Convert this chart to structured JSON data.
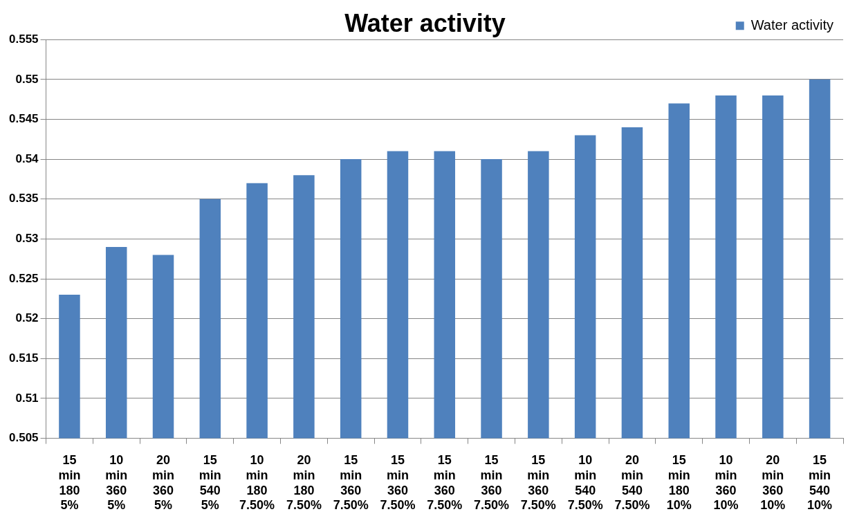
{
  "chart_data": {
    "type": "bar",
    "title": "Water activity",
    "categories": [
      "15\nmin\n180\n5%",
      "10\nmin\n360\n5%",
      "20\nmin\n360\n5%",
      "15\nmin\n540\n5%",
      "10\nmin\n180\n7.50%",
      "20\nmin\n180\n7.50%",
      "15\nmin\n360\n7.50%",
      "15\nmin\n360\n7.50%",
      "15\nmin\n360\n7.50%",
      "15\nmin\n360\n7.50%",
      "15\nmin\n360\n7.50%",
      "10\nmin\n540\n7.50%",
      "20\nmin\n540\n7.50%",
      "15\nmin\n180\n10%",
      "10\nmin\n360\n10%",
      "20\nmin\n360\n10%",
      "15\nmin\n540\n10%"
    ],
    "series": [
      {
        "name": "Water activity",
        "color": "#4f81bd",
        "values": [
          0.523,
          0.529,
          0.528,
          0.535,
          0.537,
          0.538,
          0.54,
          0.541,
          0.541,
          0.54,
          0.541,
          0.543,
          0.544,
          0.547,
          0.548,
          0.548,
          0.55
        ]
      }
    ],
    "ylim": [
      0.505,
      0.555
    ],
    "yticks": [
      0.505,
      0.51,
      0.515,
      0.52,
      0.525,
      0.53,
      0.535,
      0.54,
      0.545,
      0.55,
      0.555
    ],
    "grid": "y",
    "legend": "top right"
  }
}
